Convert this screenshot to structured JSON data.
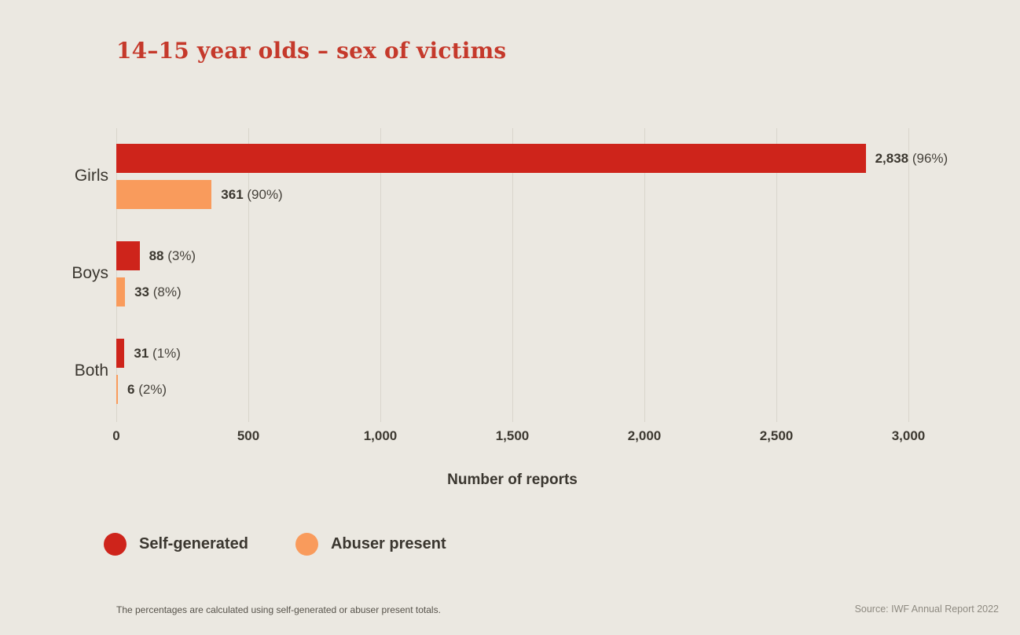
{
  "title": "14–15 year olds – sex of victims",
  "colors": {
    "background": "#EBE8E1",
    "title_red": "#C5392B",
    "bar_red": "#CE241B",
    "bar_orange": "#F99B5C",
    "text_dark": "#3A362F",
    "gridline": "#D9D5CC",
    "footnote_gray": "#56524A",
    "source_gray": "#8E8A81"
  },
  "chart_data": {
    "type": "bar",
    "orientation": "horizontal",
    "title": "14–15 year olds – sex of victims",
    "xlabel": "Number of reports",
    "ylabel": "",
    "xlim": [
      0,
      3000
    ],
    "grid": true,
    "legend_position": "bottom",
    "x_ticks": [
      0,
      500,
      1000,
      1500,
      2000,
      2500,
      3000
    ],
    "x_tick_labels": [
      "0",
      "500",
      "1,000",
      "1,500",
      "2,000",
      "2,500",
      "3,000"
    ],
    "categories": [
      "Girls",
      "Boys",
      "Both"
    ],
    "series": [
      {
        "name": "Self-generated",
        "color": "#CE241B",
        "values": [
          2838,
          88,
          31
        ]
      },
      {
        "name": "Abuser present",
        "color": "#F99B5C",
        "values": [
          361,
          33,
          6
        ]
      }
    ],
    "groups": [
      {
        "category": "Girls",
        "bars": [
          {
            "series": "Self-generated",
            "value": 2838,
            "display": "2,838",
            "percent": "(96%)"
          },
          {
            "series": "Abuser present",
            "value": 361,
            "display": "361",
            "percent": "(90%)"
          }
        ]
      },
      {
        "category": "Boys",
        "bars": [
          {
            "series": "Self-generated",
            "value": 88,
            "display": "88",
            "percent": "(3%)"
          },
          {
            "series": "Abuser present",
            "value": 33,
            "display": "33",
            "percent": "(8%)"
          }
        ]
      },
      {
        "category": "Both",
        "bars": [
          {
            "series": "Self-generated",
            "value": 31,
            "display": "31",
            "percent": "(1%)"
          },
          {
            "series": "Abuser present",
            "value": 6,
            "display": "6",
            "percent": "(2%)"
          }
        ]
      }
    ]
  },
  "legend": {
    "items": [
      {
        "label": "Self-generated",
        "color": "#CE241B"
      },
      {
        "label": "Abuser present",
        "color": "#F99B5C"
      }
    ]
  },
  "footnote": "The percentages are calculated using self-generated or abuser present totals.",
  "source": "Source: IWF Annual Report 2022"
}
